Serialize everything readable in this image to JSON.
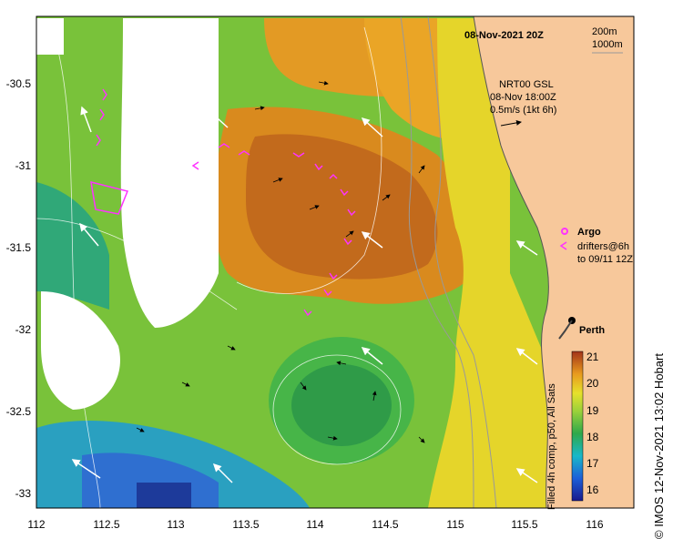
{
  "map": {
    "title": "08-Nov-2021 20Z",
    "depth_legend": [
      "200m",
      "1000m"
    ],
    "current_info": [
      "NRT00 GSL",
      "08-Nov 18:00Z",
      "0.5m/s (1kt 6h)"
    ],
    "argo_label": "Argo",
    "drifter_label": [
      "drifters@6h",
      "to 09/11 12Z"
    ],
    "city": "Perth",
    "side_text": "© IMOS 12-Nov-2021 13:02 Hobart",
    "colorbar_label": "Filled 4h comp, p50, All Sats",
    "colorbar_ticks": [
      "16",
      "17",
      "18",
      "19",
      "20",
      "21"
    ],
    "x_ticks": [
      "112",
      "112.5",
      "113",
      "113.5",
      "114",
      "114.5",
      "115",
      "115.5",
      "116"
    ],
    "y_ticks": [
      "-30.5",
      "-31",
      "-31.5",
      "-32",
      "-32.5",
      "-33"
    ],
    "colors": {
      "land": "#f7c89b",
      "drifter": "#ff33ff",
      "argo": "#ff33ff"
    }
  }
}
